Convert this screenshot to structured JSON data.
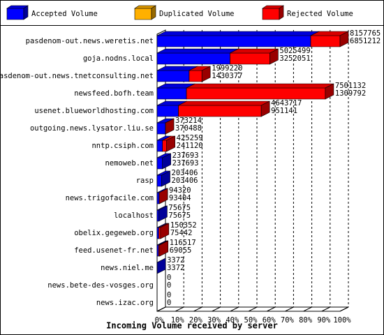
{
  "chart_data": {
    "type": "bar",
    "orientation": "horizontal",
    "x_label": "Incoming Volume received by server",
    "legend": [
      {
        "name": "Accepted Volume",
        "color": "#0000ff"
      },
      {
        "name": "Duplicated Volume",
        "color": "#ffb000"
      },
      {
        "name": "Rejected Volume",
        "color": "#ff0000"
      }
    ],
    "categories": [
      "pasdenom-out.news.weretis.net",
      "goja.nodns.local",
      "pasdenom-out.news.tnetconsulting.net",
      "newsfeed.bofh.team",
      "usenet.blueworldhosting.com",
      "outgoing.news.lysator.liu.se",
      "nntp.csiph.com",
      "nemoweb.net",
      "rasp",
      "news.trigofacile.com",
      "localhost",
      "obelix.gegeweb.org",
      "feed.usenet-fr.net",
      "news.niel.me",
      "news.bete-des-vosges.org",
      "news.izac.org"
    ],
    "total": [
      8157765,
      5025499,
      1999220,
      7501132,
      4643717,
      373214,
      425259,
      237693,
      203406,
      94320,
      75675,
      150352,
      116517,
      3372,
      0,
      0
    ],
    "accepted": [
      6851212,
      3252051,
      1430377,
      1309792,
      951141,
      370488,
      241120,
      237693,
      203406,
      93404,
      75675,
      75442,
      69055,
      3372,
      0,
      0
    ],
    "xlim": [
      0,
      8157765
    ],
    "xticks": [
      {
        "value": 0,
        "label": "0%"
      },
      {
        "value": 815776.5,
        "label": "10%"
      },
      {
        "value": 1631553,
        "label": "20%"
      },
      {
        "value": 2447329.5,
        "label": "30%"
      },
      {
        "value": 3263106,
        "label": "40%"
      },
      {
        "value": 4078882.5,
        "label": "50%"
      },
      {
        "value": 4894659,
        "label": "60%"
      },
      {
        "value": 5710435.5,
        "label": "70%"
      },
      {
        "value": 6526212,
        "label": "80%"
      },
      {
        "value": 7341988.5,
        "label": "90%"
      },
      {
        "value": 8157765,
        "label": "100%"
      }
    ],
    "grid": true
  }
}
